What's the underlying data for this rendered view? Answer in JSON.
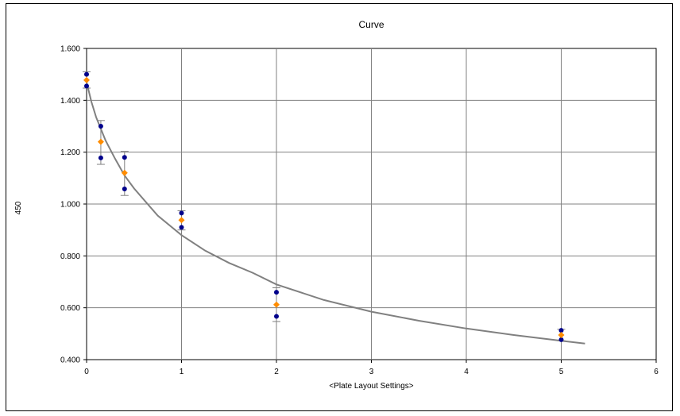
{
  "chart_data": {
    "type": "scatter",
    "title": "Curve",
    "xlabel": "<Plate Layout Settings>",
    "ylabel": "450",
    "xlim": [
      0,
      6
    ],
    "ylim": [
      0.4,
      1.6
    ],
    "x_ticks": [
      "0",
      "1",
      "2",
      "3",
      "4",
      "5",
      "6"
    ],
    "y_ticks": [
      "0.400",
      "0.600",
      "0.800",
      "1.000",
      "1.200",
      "1.400",
      "1.600"
    ],
    "grid": true,
    "legend": "none",
    "series": [
      {
        "role": "replicates",
        "color": "#00008B",
        "marker": "circle",
        "points": [
          [
            0,
            1.5
          ],
          [
            0,
            1.455
          ],
          [
            0.15,
            1.3
          ],
          [
            0.15,
            1.178
          ],
          [
            0.4,
            1.18
          ],
          [
            0.4,
            1.058
          ],
          [
            1,
            0.965
          ],
          [
            1,
            0.91
          ],
          [
            2,
            0.66
          ],
          [
            2,
            0.567
          ],
          [
            5,
            0.513
          ],
          [
            5,
            0.477
          ]
        ]
      },
      {
        "role": "mean",
        "color": "#FF8C00",
        "marker": "diamond",
        "points": [
          [
            0,
            1.478
          ],
          [
            0.15,
            1.24
          ],
          [
            0.4,
            1.12
          ],
          [
            1,
            0.938
          ],
          [
            2,
            0.612
          ],
          [
            5,
            0.495
          ]
        ],
        "error_bars": [
          [
            1.51,
            1.447
          ],
          [
            1.322,
            1.153
          ],
          [
            1.203,
            1.033
          ],
          [
            0.974,
            0.9
          ],
          [
            0.677,
            0.547
          ],
          [
            0.517,
            0.473
          ]
        ]
      },
      {
        "role": "fit",
        "color": "#808080",
        "line": true,
        "points": [
          [
            0,
            1.47
          ],
          [
            0.05,
            1.395
          ],
          [
            0.1,
            1.335
          ],
          [
            0.2,
            1.245
          ],
          [
            0.3,
            1.175
          ],
          [
            0.4,
            1.11
          ],
          [
            0.5,
            1.06
          ],
          [
            0.75,
            0.955
          ],
          [
            1,
            0.88
          ],
          [
            1.25,
            0.82
          ],
          [
            1.5,
            0.773
          ],
          [
            1.75,
            0.735
          ],
          [
            2,
            0.69
          ],
          [
            2.5,
            0.63
          ],
          [
            3,
            0.585
          ],
          [
            3.5,
            0.55
          ],
          [
            4,
            0.52
          ],
          [
            4.5,
            0.495
          ],
          [
            5,
            0.473
          ],
          [
            5.25,
            0.462
          ]
        ]
      }
    ]
  }
}
